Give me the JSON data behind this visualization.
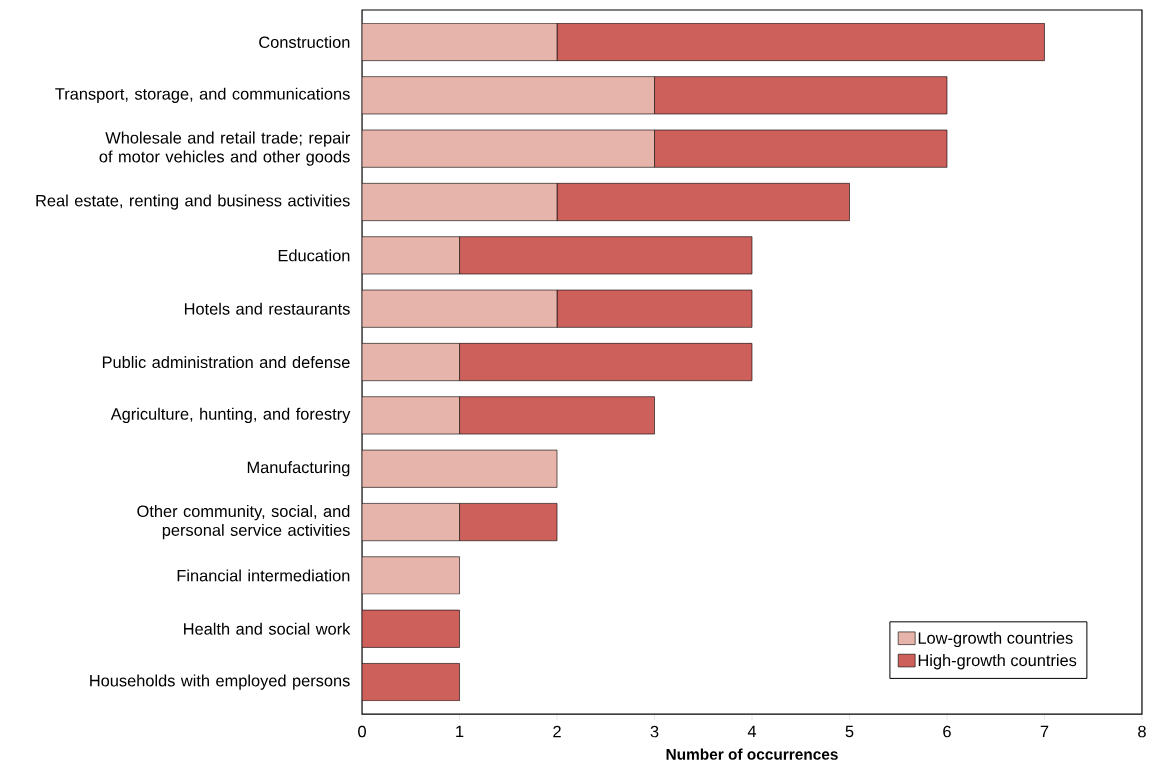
{
  "chart_data": {
    "type": "bar",
    "orientation": "horizontal",
    "stacked": true,
    "xlabel": "Number of occurrences",
    "categories": [
      "Construction",
      "Transport, storage, and communications",
      "Wholesale and retail trade; repair of motor vehicles and other goods",
      "Real estate, renting and business activities",
      "Education",
      "Hotels and restaurants",
      "Public administration and defense",
      "Agriculture, hunting, and forestry",
      "Manufacturing",
      "Other community, social, and personal service activities",
      "Financial intermediation",
      "Health and social work",
      "Households with employed persons"
    ],
    "series": [
      {
        "name": "Low-growth countries",
        "color": "#e6b4aa",
        "values": [
          2,
          3,
          3,
          2,
          1,
          2,
          1,
          1,
          2,
          1,
          1,
          0,
          0
        ]
      },
      {
        "name": "High-growth countries",
        "color": "#cd605b",
        "values": [
          5,
          3,
          3,
          3,
          3,
          2,
          3,
          2,
          0,
          1,
          0,
          1,
          1
        ]
      }
    ],
    "xlim": [
      0,
      8
    ],
    "xticks": [
      0,
      1,
      2,
      3,
      4,
      5,
      6,
      7,
      8
    ],
    "legend": "bottom right",
    "grid": false
  }
}
